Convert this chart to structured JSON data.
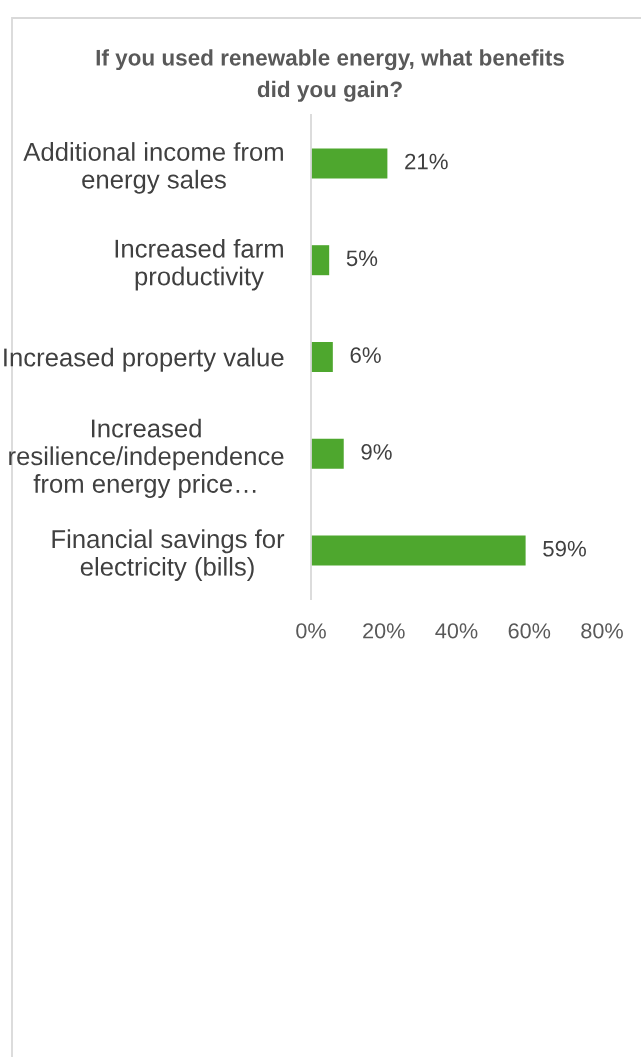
{
  "chart_data": {
    "type": "bar",
    "orientation": "horizontal",
    "title": "If you used renewable energy, what benefits\ndid you gain?",
    "categories": [
      "Additional income from\nenergy sales",
      "Increased farm\nproductivity",
      "Increased property value",
      "Increased\nresilience/independence\nfrom energy price…",
      "Financial savings for\nelectricity (bills)"
    ],
    "values": [
      21,
      5,
      6,
      9,
      59
    ],
    "value_labels": [
      "21%",
      "5%",
      "6%",
      "9%",
      "59%"
    ],
    "color": "#4ea72e",
    "xlim": [
      0,
      80
    ],
    "xticks": [
      {
        "value": 0,
        "label": "0%"
      },
      {
        "value": 20,
        "label": "20%"
      },
      {
        "value": 40,
        "label": "40%"
      },
      {
        "value": 60,
        "label": "60%"
      },
      {
        "value": 80,
        "label": "80%"
      }
    ]
  }
}
